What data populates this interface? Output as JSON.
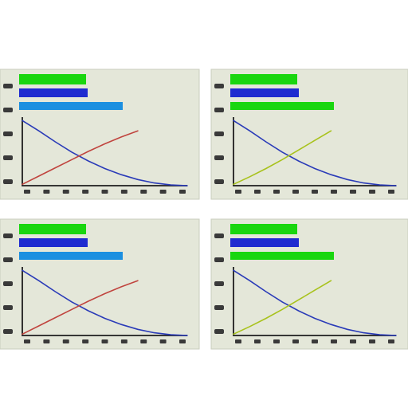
{
  "colors": {
    "panel": "#e4e7d9",
    "green": "#19d60f",
    "blue": "#1f2bd0",
    "cyan": "#1b8fe0",
    "navy": "#1f2fa8",
    "red": "#c0443e",
    "olive": "#a8c21c"
  },
  "chart_data": [
    {
      "type": "line",
      "title": "",
      "xlabel": "",
      "ylabel": "",
      "legend_placement": "top",
      "legend_swatches": [
        "#19d60f",
        "#1f2bd0",
        "#1b8fe0"
      ],
      "grid": false,
      "xlim": [
        0,
        1
      ],
      "ylim": [
        0,
        1
      ],
      "series": [
        {
          "color": "#2a3bb8",
          "x": [
            0,
            0.1,
            0.2,
            0.3,
            0.4,
            0.5,
            0.6,
            0.7,
            0.8,
            0.9,
            1
          ],
          "values": [
            0.95,
            0.8,
            0.64,
            0.49,
            0.36,
            0.25,
            0.16,
            0.09,
            0.04,
            0.01,
            0.0
          ]
        },
        {
          "color": "#c0443e",
          "x": [
            0,
            0.1,
            0.2,
            0.3,
            0.4,
            0.5,
            0.6,
            0.7
          ],
          "values": [
            0.02,
            0.14,
            0.26,
            0.38,
            0.5,
            0.61,
            0.71,
            0.8
          ]
        }
      ]
    },
    {
      "type": "line",
      "title": "",
      "xlabel": "",
      "ylabel": "",
      "legend_placement": "top",
      "legend_swatches": [
        "#19d60f",
        "#1f2bd0",
        "#19d60f"
      ],
      "grid": false,
      "xlim": [
        0,
        1
      ],
      "ylim": [
        0,
        1
      ],
      "series": [
        {
          "color": "#2a3bb8",
          "x": [
            0,
            0.1,
            0.2,
            0.3,
            0.4,
            0.5,
            0.6,
            0.7,
            0.8,
            0.9,
            1
          ],
          "values": [
            0.95,
            0.8,
            0.64,
            0.49,
            0.36,
            0.25,
            0.16,
            0.09,
            0.04,
            0.01,
            0.0
          ]
        },
        {
          "color": "#a8c21c",
          "x": [
            0,
            0.1,
            0.2,
            0.3,
            0.4,
            0.5,
            0.6
          ],
          "values": [
            0.02,
            0.13,
            0.25,
            0.38,
            0.52,
            0.66,
            0.8
          ]
        }
      ]
    },
    {
      "type": "line",
      "title": "",
      "xlabel": "",
      "ylabel": "",
      "legend_placement": "top",
      "legend_swatches": [
        "#19d60f",
        "#1f2bd0",
        "#1b8fe0"
      ],
      "grid": false,
      "xlim": [
        0,
        1
      ],
      "ylim": [
        0,
        1
      ],
      "series": [
        {
          "color": "#2a3bb8",
          "x": [
            0,
            0.1,
            0.2,
            0.3,
            0.4,
            0.5,
            0.6,
            0.7,
            0.8,
            0.9,
            1
          ],
          "values": [
            0.95,
            0.8,
            0.64,
            0.49,
            0.36,
            0.25,
            0.16,
            0.09,
            0.04,
            0.01,
            0.0
          ]
        },
        {
          "color": "#c0443e",
          "x": [
            0,
            0.1,
            0.2,
            0.3,
            0.4,
            0.5,
            0.6,
            0.7
          ],
          "values": [
            0.02,
            0.14,
            0.26,
            0.38,
            0.5,
            0.61,
            0.71,
            0.8
          ]
        }
      ]
    },
    {
      "type": "line",
      "title": "",
      "xlabel": "",
      "ylabel": "",
      "legend_placement": "top",
      "legend_swatches": [
        "#19d60f",
        "#1f2bd0",
        "#19d60f"
      ],
      "grid": false,
      "xlim": [
        0,
        1
      ],
      "ylim": [
        0,
        1
      ],
      "series": [
        {
          "color": "#2a3bb8",
          "x": [
            0,
            0.1,
            0.2,
            0.3,
            0.4,
            0.5,
            0.6,
            0.7,
            0.8,
            0.9,
            1
          ],
          "values": [
            0.95,
            0.8,
            0.64,
            0.49,
            0.36,
            0.25,
            0.16,
            0.09,
            0.04,
            0.01,
            0.0
          ]
        },
        {
          "color": "#a8c21c",
          "x": [
            0,
            0.1,
            0.2,
            0.3,
            0.4,
            0.5,
            0.6
          ],
          "values": [
            0.02,
            0.13,
            0.25,
            0.38,
            0.52,
            0.66,
            0.8
          ]
        }
      ]
    }
  ]
}
